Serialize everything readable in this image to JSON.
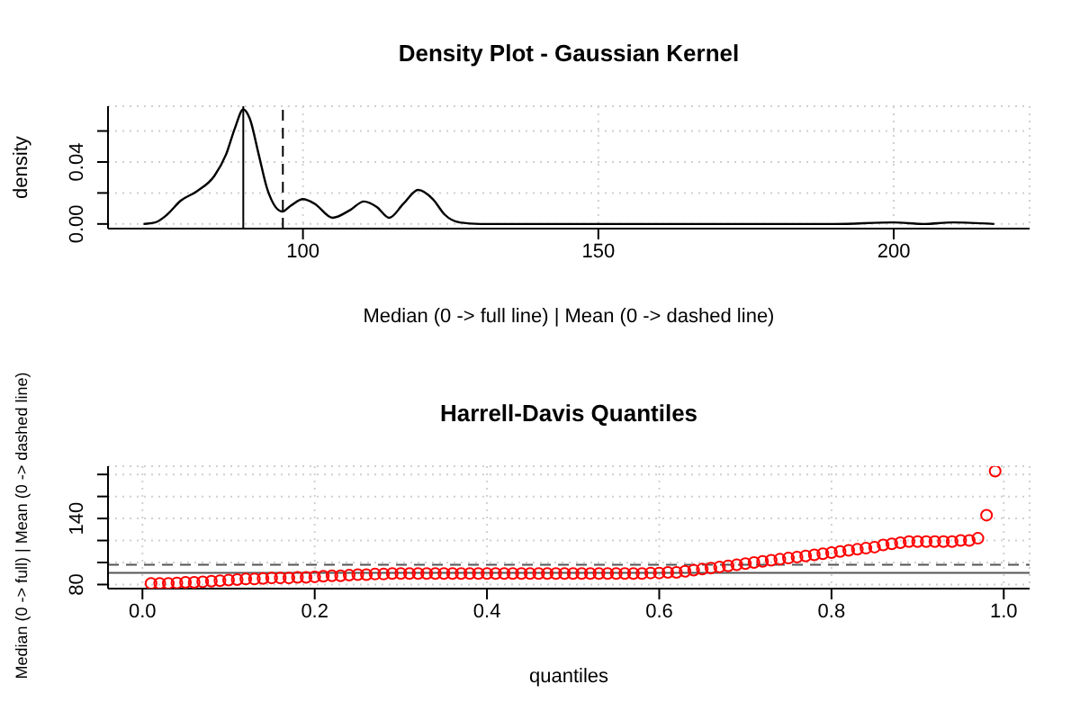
{
  "chart_data": [
    {
      "type": "line",
      "title": "Density Plot - Gaussian Kernel",
      "xlabel": "Median (0 -> full line) | Mean (0 -> dashed line)",
      "ylabel": "density",
      "x": [
        73,
        75,
        77,
        79.3,
        82,
        85,
        87,
        88.5,
        89.9,
        91,
        92.5,
        94,
        96.5,
        98,
        100,
        102,
        105,
        108,
        110.3,
        112.5,
        114.6,
        117,
        119.5,
        122,
        124,
        126.5,
        130,
        150,
        190,
        200,
        205,
        210,
        217
      ],
      "series": [
        {
          "color": "#000000",
          "values": [
            0,
            0.001,
            0.006,
            0.015,
            0.021,
            0.031,
            0.045,
            0.062,
            0.074,
            0.068,
            0.045,
            0.022,
            0.008,
            0.012,
            0.016,
            0.013,
            0.004,
            0.009,
            0.0145,
            0.011,
            0.004,
            0.013,
            0.022,
            0.016,
            0.006,
            0.001,
            0,
            0,
            0,
            0.001,
            0,
            0.001,
            0
          ]
        }
      ],
      "xlim": [
        67,
        223
      ],
      "ylim": [
        -0.003,
        0.076
      ],
      "xticks": [
        100,
        150,
        200
      ],
      "yticks": [
        {
          "value": 0,
          "label": "0.00"
        },
        {
          "value": 0.02,
          "label": null
        },
        {
          "value": 0.04,
          "label": "0.04"
        },
        {
          "value": 0.06,
          "label": null
        }
      ],
      "grid": true,
      "ref_lines": [
        {
          "axis": "x",
          "value": 89.9,
          "color": "#000000",
          "line_style": "solid"
        },
        {
          "axis": "x",
          "value": 96.6,
          "color": "#000000",
          "line_style": "dashed"
        }
      ]
    },
    {
      "type": "scatter",
      "title": "Harrell-Davis Quantiles",
      "xlabel": "quantiles",
      "ylabel": "Median (0 -> full) | Mean (0 -> dashed line)",
      "x": [
        0.01,
        0.02,
        0.03,
        0.04,
        0.05,
        0.06,
        0.07,
        0.08,
        0.09,
        0.1,
        0.11,
        0.12,
        0.13,
        0.14,
        0.15,
        0.16,
        0.17,
        0.18,
        0.19,
        0.2,
        0.21,
        0.22,
        0.23,
        0.24,
        0.25,
        0.26,
        0.27,
        0.28,
        0.29,
        0.3,
        0.31,
        0.32,
        0.33,
        0.34,
        0.35,
        0.36,
        0.37,
        0.38,
        0.39,
        0.4,
        0.41,
        0.42,
        0.43,
        0.44,
        0.45,
        0.46,
        0.47,
        0.48,
        0.49,
        0.5,
        0.51,
        0.52,
        0.53,
        0.54,
        0.55,
        0.56,
        0.57,
        0.58,
        0.59,
        0.6,
        0.61,
        0.62,
        0.63,
        0.64,
        0.65,
        0.66,
        0.67,
        0.68,
        0.69,
        0.7,
        0.71,
        0.72,
        0.73,
        0.74,
        0.75,
        0.76,
        0.77,
        0.78,
        0.79,
        0.8,
        0.81,
        0.82,
        0.83,
        0.84,
        0.85,
        0.86,
        0.87,
        0.88,
        0.89,
        0.9,
        0.91,
        0.92,
        0.93,
        0.94,
        0.95,
        0.96,
        0.97,
        0.98,
        0.99
      ],
      "series": [
        {
          "color": "#ff0000",
          "values": [
            81,
            81,
            81,
            81.5,
            82,
            82,
            82.5,
            83,
            83.5,
            84,
            84.5,
            85,
            85,
            85.5,
            86,
            86,
            86,
            86.5,
            86.5,
            87,
            87.5,
            88,
            88,
            88.5,
            89,
            89,
            89.5,
            89.5,
            90,
            90,
            90,
            90,
            90,
            90,
            90,
            90,
            90,
            90,
            90,
            90,
            90,
            90,
            90,
            90,
            90,
            90,
            90,
            90,
            90,
            90,
            90,
            90,
            90,
            90,
            90,
            90,
            90,
            90,
            90.5,
            90.5,
            91,
            91,
            92,
            93,
            94,
            95,
            96,
            97,
            98,
            99,
            100,
            101,
            102,
            103,
            104,
            105,
            106,
            107,
            108,
            109,
            110,
            111,
            112,
            113,
            114,
            116,
            117,
            118,
            119,
            119,
            119,
            119,
            119,
            119,
            120,
            120,
            122,
            143,
            183
          ]
        }
      ],
      "xlim": [
        -0.04,
        1.03
      ],
      "ylim": [
        76.3,
        187.5
      ],
      "xticks": [
        {
          "value": 0,
          "label": "0.0"
        },
        0.2,
        0.4,
        0.6,
        0.8,
        {
          "value": 1,
          "label": "1.0"
        }
      ],
      "yticks": [
        80,
        {
          "value": 100,
          "label": null
        },
        {
          "value": 120,
          "label": null
        },
        140,
        {
          "value": 160,
          "label": null
        },
        {
          "value": 180,
          "label": null
        }
      ],
      "grid": true,
      "marker": "circle",
      "ref_lines": [
        {
          "axis": "y",
          "value": 90.6,
          "color": "#555555",
          "line_style": "solid"
        },
        {
          "axis": "y",
          "value": 98,
          "color": "#555555",
          "line_style": "dashed"
        }
      ]
    }
  ]
}
